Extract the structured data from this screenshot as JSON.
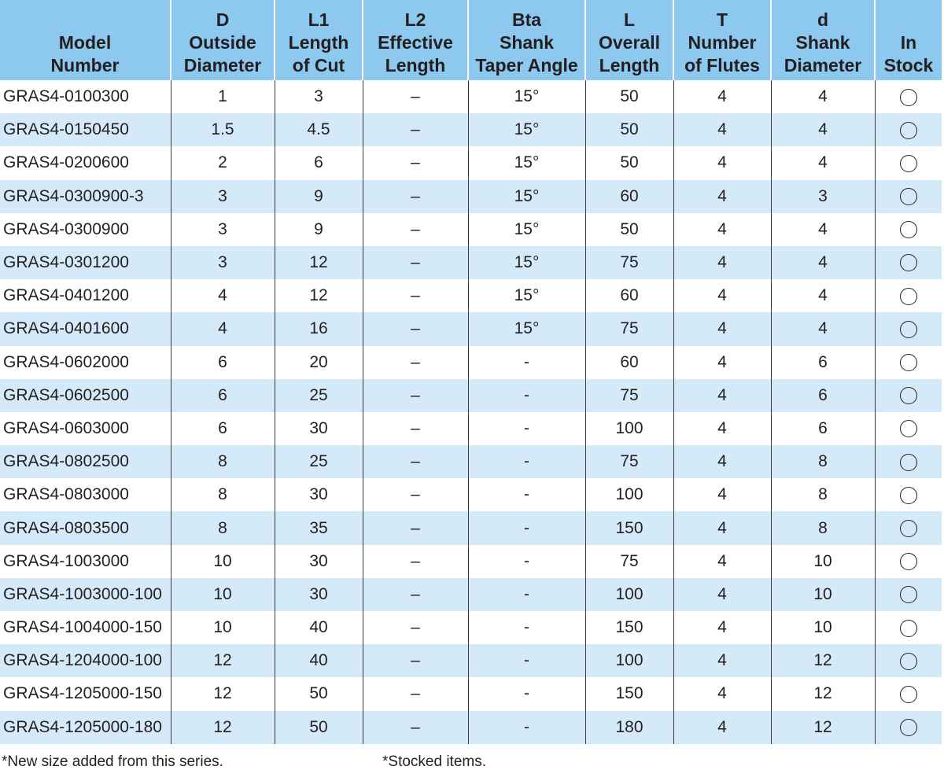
{
  "headers": [
    {
      "lines": [
        "",
        "Model",
        "Number"
      ]
    },
    {
      "lines": [
        "D",
        "Outside",
        "Diameter"
      ]
    },
    {
      "lines": [
        "L1",
        "Length",
        "of Cut"
      ]
    },
    {
      "lines": [
        "L2",
        "Effective",
        "Length"
      ]
    },
    {
      "lines": [
        "Bta",
        "Shank",
        "Taper Angle"
      ]
    },
    {
      "lines": [
        "L",
        "Overall",
        "Length"
      ]
    },
    {
      "lines": [
        "T",
        "Number",
        "of Flutes"
      ]
    },
    {
      "lines": [
        "d",
        "Shank",
        "Diameter"
      ]
    },
    {
      "lines": [
        "",
        "In",
        "Stock"
      ]
    }
  ],
  "rows": [
    [
      "GRAS4-0100300",
      "1",
      "3",
      "–",
      "15°",
      "50",
      "4",
      "4"
    ],
    [
      "GRAS4-0150450",
      "1.5",
      "4.5",
      "–",
      "15°",
      "50",
      "4",
      "4"
    ],
    [
      "GRAS4-0200600",
      "2",
      "6",
      "–",
      "15°",
      "50",
      "4",
      "4"
    ],
    [
      "GRAS4-0300900-3",
      "3",
      "9",
      "–",
      "15°",
      "60",
      "4",
      "3"
    ],
    [
      "GRAS4-0300900",
      "3",
      "9",
      "–",
      "15°",
      "50",
      "4",
      "4"
    ],
    [
      "GRAS4-0301200",
      "3",
      "12",
      "–",
      "15°",
      "75",
      "4",
      "4"
    ],
    [
      "GRAS4-0401200",
      "4",
      "12",
      "–",
      "15°",
      "60",
      "4",
      "4"
    ],
    [
      "GRAS4-0401600",
      "4",
      "16",
      "–",
      "15°",
      "75",
      "4",
      "4"
    ],
    [
      "GRAS4-0602000",
      "6",
      "20",
      "–",
      "-",
      "60",
      "4",
      "6"
    ],
    [
      "GRAS4-0602500",
      "6",
      "25",
      "–",
      "-",
      "75",
      "4",
      "6"
    ],
    [
      "GRAS4-0603000",
      "6",
      "30",
      "–",
      "-",
      "100",
      "4",
      "6"
    ],
    [
      "GRAS4-0802500",
      "8",
      "25",
      "–",
      "-",
      "75",
      "4",
      "8"
    ],
    [
      "GRAS4-0803000",
      "8",
      "30",
      "–",
      "-",
      "100",
      "4",
      "8"
    ],
    [
      "GRAS4-0803500",
      "8",
      "35",
      "–",
      "-",
      "150",
      "4",
      "8"
    ],
    [
      "GRAS4-1003000",
      "10",
      "30",
      "–",
      "-",
      "75",
      "4",
      "10"
    ],
    [
      "GRAS4-1003000-100",
      "10",
      "30",
      "–",
      "-",
      "100",
      "4",
      "10"
    ],
    [
      "GRAS4-1004000-150",
      "10",
      "40",
      "–",
      "-",
      "150",
      "4",
      "10"
    ],
    [
      "GRAS4-1204000-100",
      "12",
      "40",
      "–",
      "-",
      "100",
      "4",
      "12"
    ],
    [
      "GRAS4-1205000-150",
      "12",
      "50",
      "–",
      "-",
      "150",
      "4",
      "12"
    ],
    [
      "GRAS4-1205000-180",
      "12",
      "50",
      "–",
      "-",
      "180",
      "4",
      "12"
    ]
  ],
  "stock_icon": "open-circle",
  "notes": {
    "new_size": "*New size added from this series.",
    "stocked": "*Stocked items."
  },
  "colors": {
    "header_bg": "#8dc8ef",
    "stripe_bg": "#d4eaf8",
    "text": "#231f20"
  }
}
